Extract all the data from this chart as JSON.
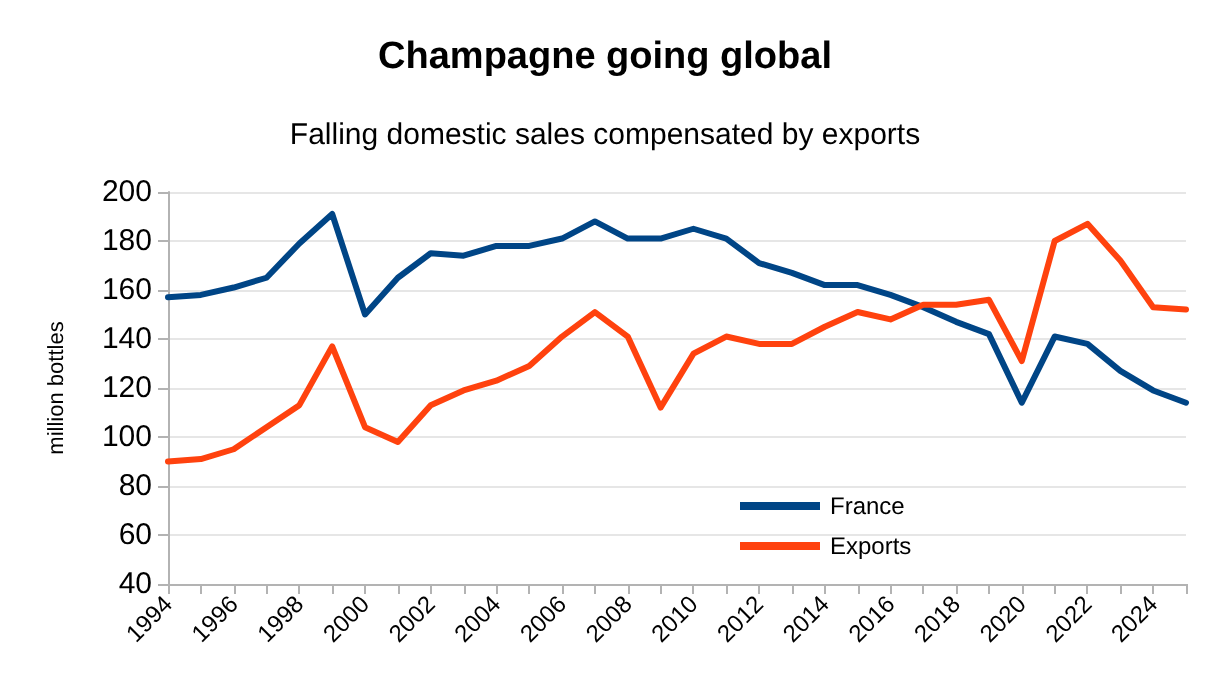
{
  "chart_data": {
    "type": "line",
    "title": "Champagne going global",
    "subtitle": "Falling domestic sales compensated by exports",
    "ylabel": "million bottles",
    "categories": [
      "1994",
      null,
      "1996",
      null,
      "1998",
      null,
      "2000",
      null,
      "2002",
      null,
      "2004",
      null,
      "2006",
      null,
      "2008",
      null,
      "2010",
      null,
      "2012",
      null,
      "2014",
      null,
      "2016",
      null,
      "2018",
      null,
      "2020",
      null,
      "2022",
      null,
      "2024",
      null
    ],
    "series": [
      {
        "name": "France",
        "color": "#004586",
        "values": [
          157,
          158,
          161,
          165,
          179,
          191,
          150,
          165,
          175,
          174,
          178,
          178,
          181,
          188,
          181,
          181,
          185,
          181,
          171,
          167,
          162,
          162,
          158,
          153,
          147,
          142,
          114,
          141,
          138,
          127,
          119,
          114
        ]
      },
      {
        "name": "Exports",
        "color": "#ff420e",
        "values": [
          90,
          91,
          95,
          104,
          113,
          137,
          104,
          98,
          113,
          119,
          123,
          129,
          141,
          151,
          141,
          112,
          134,
          141,
          138,
          138,
          145,
          151,
          148,
          154,
          154,
          156,
          131,
          180,
          187,
          172,
          153,
          152
        ]
      }
    ],
    "ylim": [
      40,
      200
    ],
    "yticks": [
      40,
      60,
      80,
      100,
      120,
      140,
      160,
      180,
      200
    ],
    "grid": "y",
    "legend": "bottom",
    "marker": "none",
    "line_style": "solid"
  }
}
